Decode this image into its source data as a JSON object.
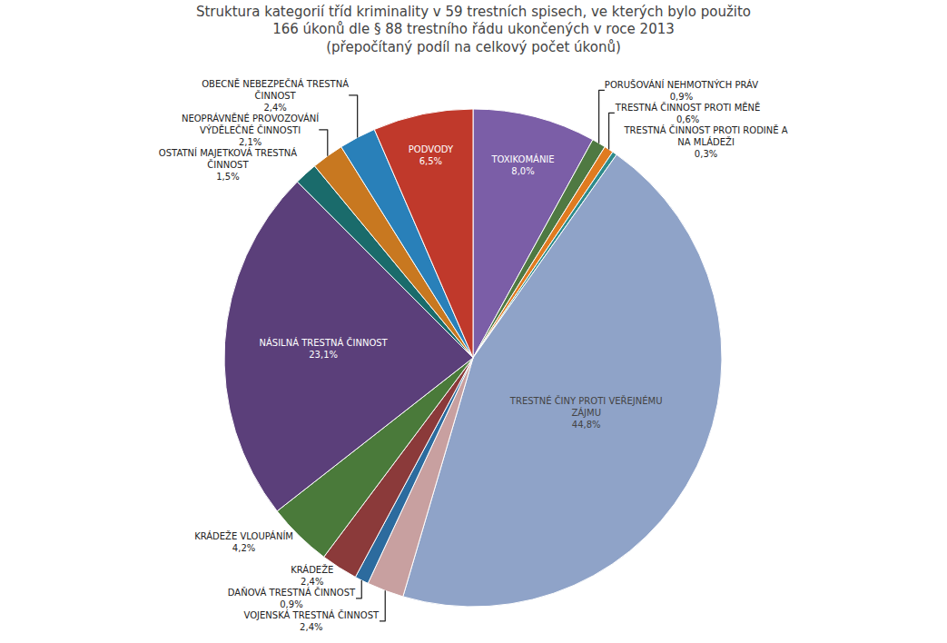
{
  "chart_data": {
    "type": "pie",
    "title": "Struktura kategorií tříd kriminality v 59 trestních spisech, ve kterých bylo použito\n166 úkonů dle § 88 trestního řádu ukončených v roce 2013\n(přepočítaný podíl na celkový počet úkonů)",
    "categories": [
      "TOXIKOMÁNIE",
      "PORUŠOVÁNÍ NEHMOTNÝCH PRÁV",
      "TRESTNÁ ČINNOST PROTI MĚNĚ",
      "TRESTNÁ ČINNOST PROTI RODINĚ A\nNA MLÁDEŽI",
      "TRESTNÉ ČINY PROTI VEŘEJNÉMU\nZÁJMU",
      "VOJENSKÁ TRESTNÁ ČINNOST",
      "DAŇOVÁ TRESTNÁ ČINNOST",
      "KRÁDEŽE",
      "KRÁDEŽE VLOUPÁNÍM",
      "NÁSILNÁ TRESTNÁ ČINNOST",
      "OSTATNÍ MAJETKOVÁ TRESTNÁ\nČINNOST",
      "NEOPRÁVNĚNÉ PROVOZOVÁNÍ\nVÝDĚLEČNÉ ČINNOSTI",
      "OBECNĚ NEBEZPEČNÁ TRESTNÁ\nČINNOST",
      "PODVODY"
    ],
    "values": [
      8.0,
      0.9,
      0.6,
      0.3,
      44.8,
      2.4,
      0.9,
      2.4,
      4.2,
      23.1,
      1.5,
      2.1,
      2.4,
      6.5
    ],
    "value_labels": [
      "8,0%",
      "0,9%",
      "0,6%",
      "0,3%",
      "44,8%",
      "2,4%",
      "0,9%",
      "2,4%",
      "4,2%",
      "23,1%",
      "1,5%",
      "2,1%",
      "2,4%",
      "6,5%"
    ],
    "data_labels": true,
    "colors": [
      "#7B5EA7",
      "#4F7942",
      "#E07B20",
      "#2E8B8B",
      "#8FA3C8",
      "#C8A0A0",
      "#2C6B9E",
      "#8B3A3A",
      "#4A7A3A",
      "#5B3F7A",
      "#1A6B6B",
      "#C87820",
      "#2980B9",
      "#C0392B"
    ]
  }
}
